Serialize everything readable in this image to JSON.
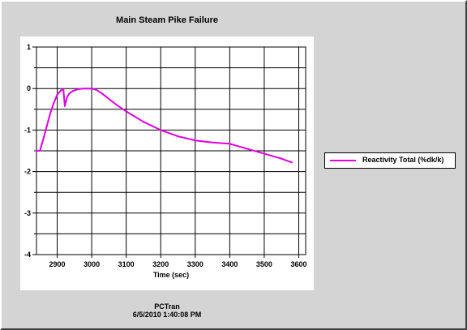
{
  "window": {
    "background": "#d4d4d4"
  },
  "footer": {
    "source": "PCTran",
    "timestamp": "6/5/2010 1:40:08 PM"
  },
  "chart_data": {
    "type": "line",
    "title": "Main Steam Pike Failure",
    "xlabel": "Time (sec)",
    "ylabel": "",
    "xlim": [
      2840,
      3620
    ],
    "ylim": [
      -4,
      1
    ],
    "xticks": [
      2900,
      3000,
      3100,
      3200,
      3300,
      3400,
      3500,
      3600
    ],
    "yticks": [
      -4,
      -3,
      -2,
      -1,
      0,
      1
    ],
    "grid": true,
    "legend_position": "right",
    "series": [
      {
        "name": "Reactivity Total (%dk/k)",
        "color": "#e000e0",
        "x": [
          2840,
          2850,
          2855,
          2862,
          2870,
          2880,
          2890,
          2900,
          2910,
          2918,
          2922,
          2928,
          2935,
          2945,
          2955,
          2965,
          2975,
          2985,
          2995,
          3005,
          3015,
          3030,
          3050,
          3070,
          3100,
          3150,
          3200,
          3250,
          3300,
          3350,
          3400,
          3450,
          3500,
          3550,
          3580
        ],
        "y": [
          -1.5,
          -1.5,
          -1.35,
          -1.15,
          -0.9,
          -0.6,
          -0.35,
          -0.15,
          -0.05,
          -0.02,
          -0.42,
          -0.22,
          -0.12,
          -0.06,
          -0.03,
          -0.01,
          0.0,
          0.0,
          0.0,
          -0.01,
          -0.04,
          -0.12,
          -0.25,
          -0.38,
          -0.55,
          -0.8,
          -1.0,
          -1.15,
          -1.25,
          -1.3,
          -1.33,
          -1.45,
          -1.57,
          -1.69,
          -1.78
        ]
      }
    ]
  }
}
